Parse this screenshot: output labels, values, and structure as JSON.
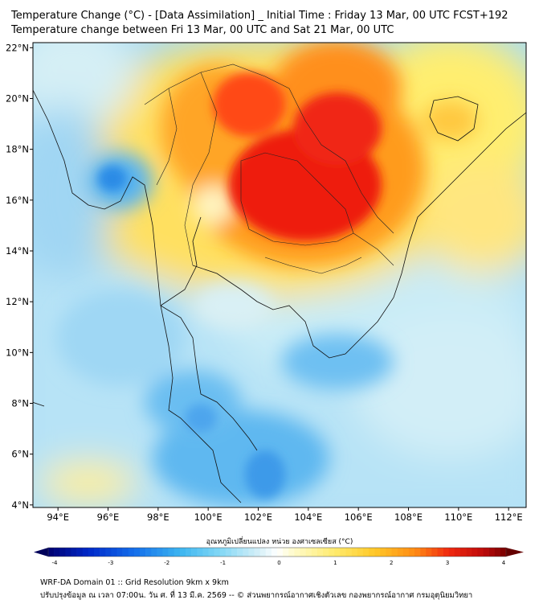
{
  "header": {
    "title_line1": "Temperature Change (°C) - [Data Assimilation] _ Initial Time : Friday 13 Mar, 00 UTC FCST+192",
    "title_line2": "Temperature change between Fri 13 Mar, 00 UTC and Sat 21 Mar, 00 UTC"
  },
  "map": {
    "lat_labels": [
      "22°N",
      "20°N",
      "18°N",
      "16°N",
      "14°N",
      "12°N",
      "10°N",
      "8°N",
      "6°N",
      "4°N"
    ],
    "lat_values": [
      22,
      20,
      18,
      16,
      14,
      12,
      10,
      8,
      6,
      4
    ],
    "lon_labels": [
      "94°E",
      "96°E",
      "98°E",
      "100°E",
      "102°E",
      "104°E",
      "106°E",
      "108°E",
      "110°E",
      "112°E"
    ],
    "lon_values": [
      94,
      96,
      98,
      100,
      102,
      104,
      106,
      108,
      110,
      112
    ],
    "lon_range": [
      93.0,
      112.7
    ],
    "lat_range": [
      3.9,
      22.2
    ],
    "warm_color": "#ff0000",
    "cool_color": "#4fa8f0"
  },
  "colorbar": {
    "label": "อุณหภูมิเปลี่ยนแปลง หน่วย องศาเซลเซียส (°C)",
    "tick_labels": [
      "-4",
      "-3",
      "-2",
      "-1",
      "0",
      "1",
      "2",
      "3",
      "4"
    ],
    "tick_values": [
      -4,
      -3,
      -2,
      -1,
      0,
      1,
      2,
      3,
      4
    ],
    "range": [
      -4,
      4
    ]
  },
  "footer": {
    "line1": "WRF-DA Domain 01 :: Grid Resolution 9km x 9km",
    "line2": "ปรับปรุงข้อมูล ณ เวลา 07:00น. วัน ศ. ที่ 13 มี.ค. 2569 -- © ส่วนพยากรณ์อากาศเชิงตัวเลข กองพยากรณ์อากาศ กรมอุตุนิยมวิทยา"
  }
}
